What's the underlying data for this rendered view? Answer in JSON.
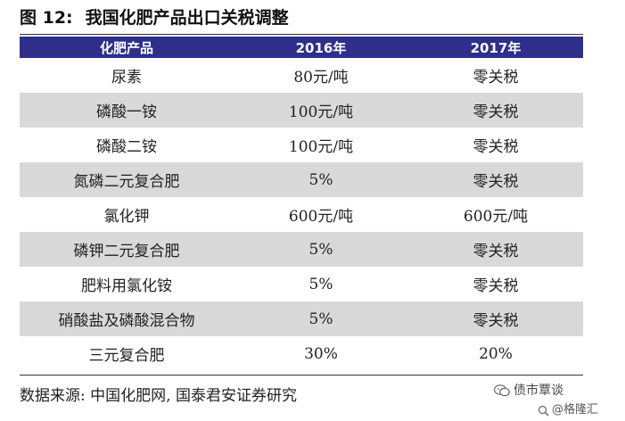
{
  "figure": {
    "label": "图 12:",
    "title": "我国化肥产品出口关税调整"
  },
  "table": {
    "headers": [
      "化肥产品",
      "2016年",
      "2017年"
    ],
    "rows": [
      [
        "尿素",
        "80元/吨",
        "零关税"
      ],
      [
        "磷酸一铵",
        "100元/吨",
        "零关税"
      ],
      [
        "磷酸二铵",
        "100元/吨",
        "零关税"
      ],
      [
        "氮磷二元复合肥",
        "5%",
        "零关税"
      ],
      [
        "氯化钾",
        "600元/吨",
        "600元/吨"
      ],
      [
        "磷钾二元复合肥",
        "5%",
        "零关税"
      ],
      [
        "肥料用氯化铵",
        "5%",
        "零关税"
      ],
      [
        "硝酸盐及磷酸混合物",
        "5%",
        "零关税"
      ],
      [
        "三元复合肥",
        "30%",
        "20%"
      ]
    ]
  },
  "source": "数据来源: 中国化肥网, 国泰君安证券研究",
  "watermarks": {
    "wechat_account": "债市覃谈",
    "app_name": "@格隆汇",
    "icons": [
      "wechat-icon",
      "search-icon"
    ]
  },
  "colors": {
    "header_bg": "#2d2f8b",
    "shaded_row": "#d9d9d9"
  }
}
